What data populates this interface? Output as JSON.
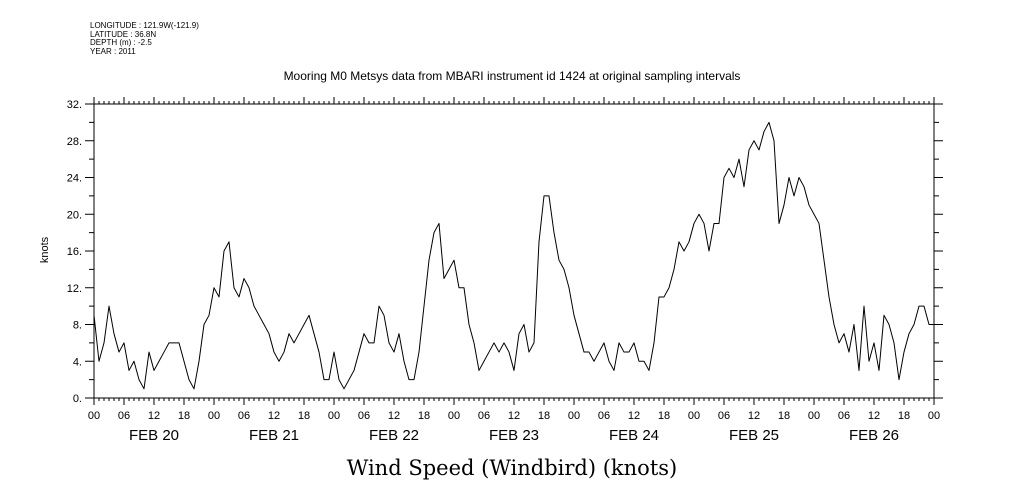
{
  "meta": {
    "longitude": "LONGITUDE : 121.9W(-121.9)",
    "latitude": "LATITUDE : 36.8N",
    "depth": "DEPTH (m) : -2.5",
    "year": "YEAR : 2011"
  },
  "chart_data": {
    "type": "line",
    "title": "Mooring M0 Metsys data from MBARI instrument id 1424 at original sampling intervals",
    "xlabel": "Wind Speed (Windbird) (knots)",
    "ylabel": "knots",
    "ylim": [
      0,
      32
    ],
    "yticks": [
      "0.",
      "4.",
      "8.",
      "12.",
      "16.",
      "20.",
      "24.",
      "28.",
      "32."
    ],
    "xlim_hours": [
      0,
      168
    ],
    "hour_ticks": [
      "00",
      "06",
      "12",
      "18",
      "00",
      "06",
      "12",
      "18",
      "00",
      "06",
      "12",
      "18",
      "00",
      "06",
      "12",
      "18",
      "00",
      "06",
      "12",
      "18",
      "00",
      "06",
      "12",
      "18",
      "00",
      "06",
      "12",
      "18",
      "00"
    ],
    "day_labels": [
      "FEB 20",
      "FEB 21",
      "FEB 22",
      "FEB 23",
      "FEB 24",
      "FEB 25",
      "FEB 26"
    ],
    "grid": false,
    "series": [
      {
        "x": [
          0,
          1,
          2,
          3,
          4,
          5,
          6,
          7,
          8,
          9,
          10,
          11,
          12,
          13,
          14,
          15,
          16,
          17,
          18,
          19,
          20,
          21,
          22,
          23,
          24,
          25,
          26,
          27,
          28,
          29,
          30,
          31,
          32,
          33,
          34,
          35,
          36,
          37,
          38,
          39,
          40,
          41,
          42,
          43,
          44,
          45,
          46,
          47,
          48,
          49,
          50,
          51,
          52,
          53,
          54,
          55,
          56,
          57,
          58,
          59,
          60,
          61,
          62,
          63,
          64,
          65,
          66,
          67,
          68,
          69,
          70,
          71,
          72,
          73,
          74,
          75,
          76,
          77,
          78,
          79,
          80,
          81,
          82,
          83,
          84,
          85,
          86,
          87,
          88,
          89,
          90,
          91,
          92,
          93,
          94,
          95,
          96,
          97,
          98,
          99,
          100,
          101,
          102,
          103,
          104,
          105,
          106,
          107,
          108,
          109,
          110,
          111,
          112,
          113,
          114,
          115,
          116,
          117,
          118,
          119,
          120,
          121,
          122,
          123,
          124,
          125,
          126,
          127,
          128,
          129,
          130,
          131,
          132,
          133,
          134,
          135,
          136,
          137,
          138,
          139,
          140,
          141,
          142,
          143,
          144,
          145,
          146,
          147,
          148,
          149,
          150,
          151,
          152,
          153,
          154,
          155,
          156,
          157,
          158,
          159,
          160,
          161,
          162,
          163,
          164,
          165,
          166,
          167,
          168
        ],
        "y": [
          9,
          4,
          6,
          10,
          7,
          5,
          6,
          3,
          4,
          2,
          1,
          5,
          3,
          4,
          5,
          6,
          6,
          6,
          4,
          2,
          1,
          4,
          8,
          9,
          12,
          11,
          16,
          17,
          12,
          11,
          13,
          12,
          10,
          9,
          8,
          7,
          5,
          4,
          5,
          7,
          6,
          7,
          8,
          9,
          7,
          5,
          2,
          2,
          5,
          2,
          1,
          2,
          3,
          5,
          7,
          6,
          6,
          10,
          9,
          6,
          5,
          7,
          4,
          2,
          2,
          5,
          10,
          15,
          18,
          19,
          13,
          14,
          15,
          12,
          12,
          8,
          6,
          3,
          4,
          5,
          6,
          5,
          6,
          5,
          3,
          7,
          8,
          5,
          6,
          17,
          22,
          22,
          18,
          15,
          14,
          12,
          9,
          7,
          5,
          5,
          4,
          5,
          6,
          4,
          3,
          6,
          5,
          5,
          6,
          4,
          4,
          3,
          6,
          11,
          11,
          12,
          14,
          17,
          16,
          17,
          19,
          20,
          19,
          16,
          19,
          19,
          24,
          25,
          24,
          26,
          23,
          27,
          28,
          27,
          29,
          30,
          28,
          19,
          21,
          24,
          22,
          24,
          23,
          21,
          20,
          19,
          15,
          11,
          8,
          6,
          7,
          5,
          8,
          3,
          10,
          4,
          6,
          3,
          9,
          8,
          6,
          2,
          5,
          7,
          8,
          10,
          10,
          8,
          8
        ]
      }
    ]
  }
}
